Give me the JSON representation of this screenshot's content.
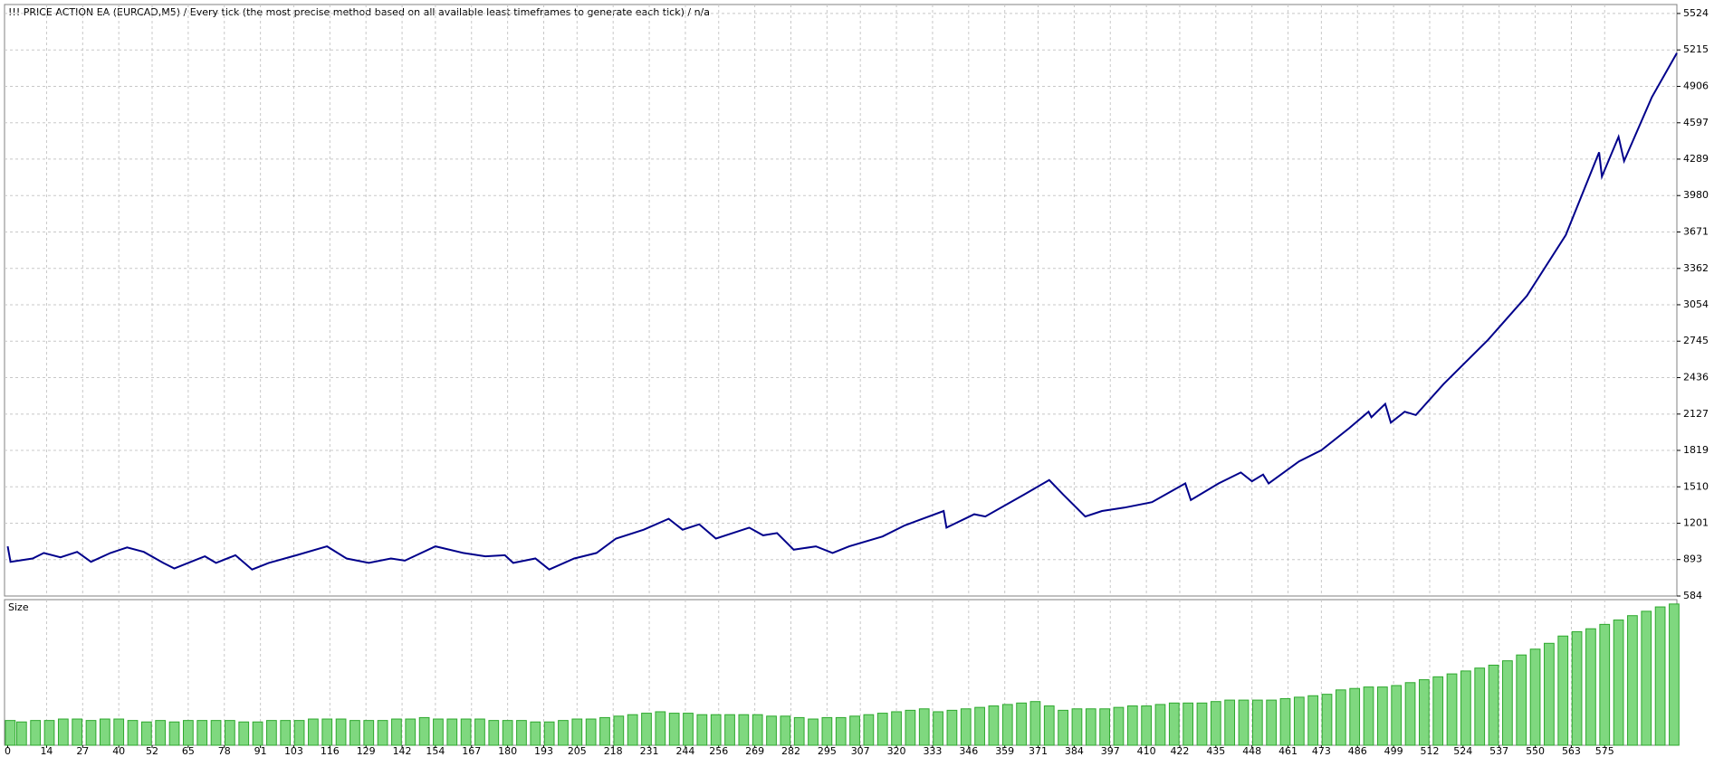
{
  "chart_data": [
    {
      "type": "line",
      "title": "!!! PRICE ACTION EA (EURCAD,M5) / Every tick (the most precise method based on all available least timeframes to generate each tick) / n/a",
      "color": "#00008b",
      "x": [
        0,
        1,
        9,
        13,
        19,
        25,
        30,
        37,
        43,
        49,
        56,
        60,
        67,
        71,
        75,
        82,
        88,
        94,
        104,
        115,
        122,
        130,
        138,
        143,
        154,
        164,
        172,
        179,
        182,
        190,
        195,
        204,
        212,
        219,
        229,
        238,
        243,
        249,
        255,
        261,
        267,
        272,
        277,
        283,
        291,
        297,
        303,
        315,
        323,
        337,
        338,
        348,
        352,
        366,
        375,
        380,
        388,
        394,
        402,
        412,
        424,
        426,
        436,
        444,
        448,
        452,
        454,
        465,
        473,
        483,
        490,
        491,
        496,
        498,
        503,
        507,
        517,
        533,
        547,
        561,
        573,
        574,
        580,
        582,
        592,
        601
      ],
      "values": [
        1005,
        874,
        902,
        949,
        912,
        958,
        874,
        949,
        996,
        958,
        865,
        818,
        884,
        921,
        865,
        930,
        809,
        865,
        930,
        1005,
        902,
        865,
        902,
        884,
        1005,
        949,
        921,
        930,
        865,
        902,
        809,
        902,
        949,
        1071,
        1146,
        1239,
        1146,
        1192,
        1071,
        1118,
        1164,
        1099,
        1118,
        977,
        1005,
        949,
        1005,
        1089,
        1183,
        1305,
        1164,
        1277,
        1258,
        1445,
        1567,
        1445,
        1258,
        1305,
        1333,
        1380,
        1539,
        1398,
        1539,
        1632,
        1557,
        1614,
        1539,
        1726,
        1820,
        2007,
        2147,
        2100,
        2213,
        2054,
        2147,
        2119,
        2381,
        2756,
        3130,
        3645,
        4347,
        4141,
        4478,
        4272,
        4815,
        5189
      ],
      "xlim": [
        0,
        601
      ],
      "ylim": [
        584,
        5600
      ],
      "yticks": [
        584,
        893,
        1201,
        1510,
        1819,
        2127,
        2436,
        2745,
        3054,
        3362,
        3671,
        3980,
        4289,
        4597,
        4906,
        5215,
        5524
      ],
      "xticks": [
        0,
        14,
        27,
        40,
        52,
        65,
        78,
        91,
        103,
        116,
        129,
        142,
        154,
        167,
        180,
        193,
        205,
        218,
        231,
        244,
        256,
        269,
        282,
        295,
        307,
        320,
        333,
        346,
        359,
        371,
        384,
        397,
        410,
        422,
        435,
        448,
        461,
        473,
        486,
        499,
        512,
        524,
        537,
        550,
        563,
        575
      ],
      "grid": true
    },
    {
      "type": "bar",
      "title": "Size",
      "color": "#7fd87f",
      "x": [
        0,
        5,
        10,
        15,
        20,
        25,
        30,
        35,
        40,
        45,
        50,
        55,
        60,
        65,
        70,
        75,
        80,
        85,
        90,
        95,
        100,
        105,
        110,
        115,
        120,
        125,
        130,
        135,
        140,
        145,
        150,
        155,
        160,
        165,
        170,
        175,
        180,
        185,
        190,
        195,
        200,
        205,
        210,
        215,
        220,
        225,
        230,
        235,
        240,
        245,
        250,
        255,
        260,
        265,
        270,
        275,
        280,
        285,
        290,
        295,
        300,
        305,
        310,
        315,
        320,
        325,
        330,
        335,
        340,
        345,
        350,
        355,
        360,
        365,
        370,
        375,
        380,
        385,
        390,
        395,
        400,
        405,
        410,
        415,
        420,
        425,
        430,
        435,
        440,
        445,
        450,
        455,
        460,
        465,
        470,
        475,
        480,
        485,
        490,
        495,
        500,
        505,
        510,
        515,
        520,
        525,
        530,
        535,
        540,
        545,
        550,
        555,
        560,
        565,
        570,
        575,
        580,
        585,
        590,
        595,
        600
      ],
      "values": [
        0.17,
        0.16,
        0.17,
        0.17,
        0.18,
        0.18,
        0.17,
        0.18,
        0.18,
        0.17,
        0.16,
        0.17,
        0.16,
        0.17,
        0.17,
        0.17,
        0.17,
        0.16,
        0.16,
        0.17,
        0.17,
        0.17,
        0.18,
        0.18,
        0.18,
        0.17,
        0.17,
        0.17,
        0.18,
        0.18,
        0.19,
        0.18,
        0.18,
        0.18,
        0.18,
        0.17,
        0.17,
        0.17,
        0.16,
        0.16,
        0.17,
        0.18,
        0.18,
        0.19,
        0.2,
        0.21,
        0.22,
        0.23,
        0.22,
        0.22,
        0.21,
        0.21,
        0.21,
        0.21,
        0.21,
        0.2,
        0.2,
        0.19,
        0.18,
        0.19,
        0.19,
        0.2,
        0.21,
        0.22,
        0.23,
        0.24,
        0.25,
        0.23,
        0.24,
        0.25,
        0.26,
        0.27,
        0.28,
        0.29,
        0.3,
        0.27,
        0.24,
        0.25,
        0.25,
        0.25,
        0.26,
        0.27,
        0.27,
        0.28,
        0.29,
        0.29,
        0.29,
        0.3,
        0.31,
        0.31,
        0.31,
        0.31,
        0.32,
        0.33,
        0.34,
        0.35,
        0.38,
        0.39,
        0.4,
        0.4,
        0.41,
        0.43,
        0.45,
        0.47,
        0.49,
        0.51,
        0.53,
        0.55,
        0.58,
        0.62,
        0.66,
        0.7,
        0.75,
        0.78,
        0.8,
        0.83,
        0.86,
        0.89,
        0.92,
        0.95,
        0.97
      ],
      "ylim": [
        0,
        1
      ]
    }
  ]
}
